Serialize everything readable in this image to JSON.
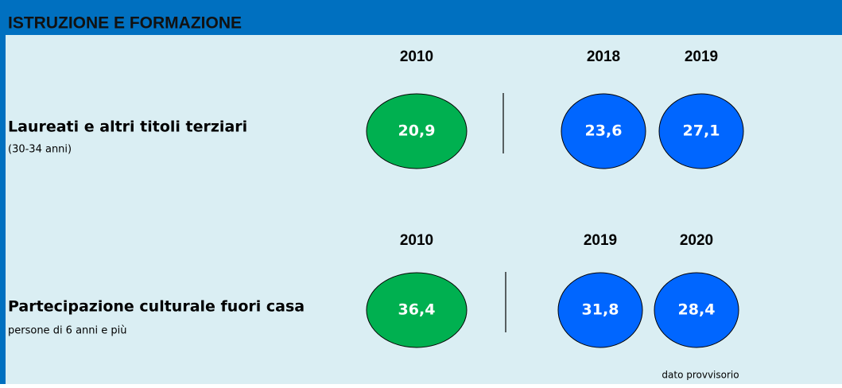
{
  "header": {
    "title": "ISTRUZIONE E FORMAZIONE"
  },
  "indicators": [
    {
      "label": "Laureati e altri titoli terziari",
      "note": "(30-34 anni)",
      "baseline": {
        "year": 2010,
        "value": "20,9"
      },
      "recent": [
        {
          "year": 2018,
          "value": "23,6"
        },
        {
          "year": 2019,
          "value": "27,1"
        }
      ]
    },
    {
      "label": "Partecipazione culturale fuori casa",
      "note": "persone di 6 anni e più",
      "baseline": {
        "year": 2010,
        "value": "36,4"
      },
      "recent": [
        {
          "year": 2019,
          "value": "31,8"
        },
        {
          "year": 2020,
          "value": "28,4"
        }
      ]
    }
  ],
  "footnote": "dato provvisorio"
}
